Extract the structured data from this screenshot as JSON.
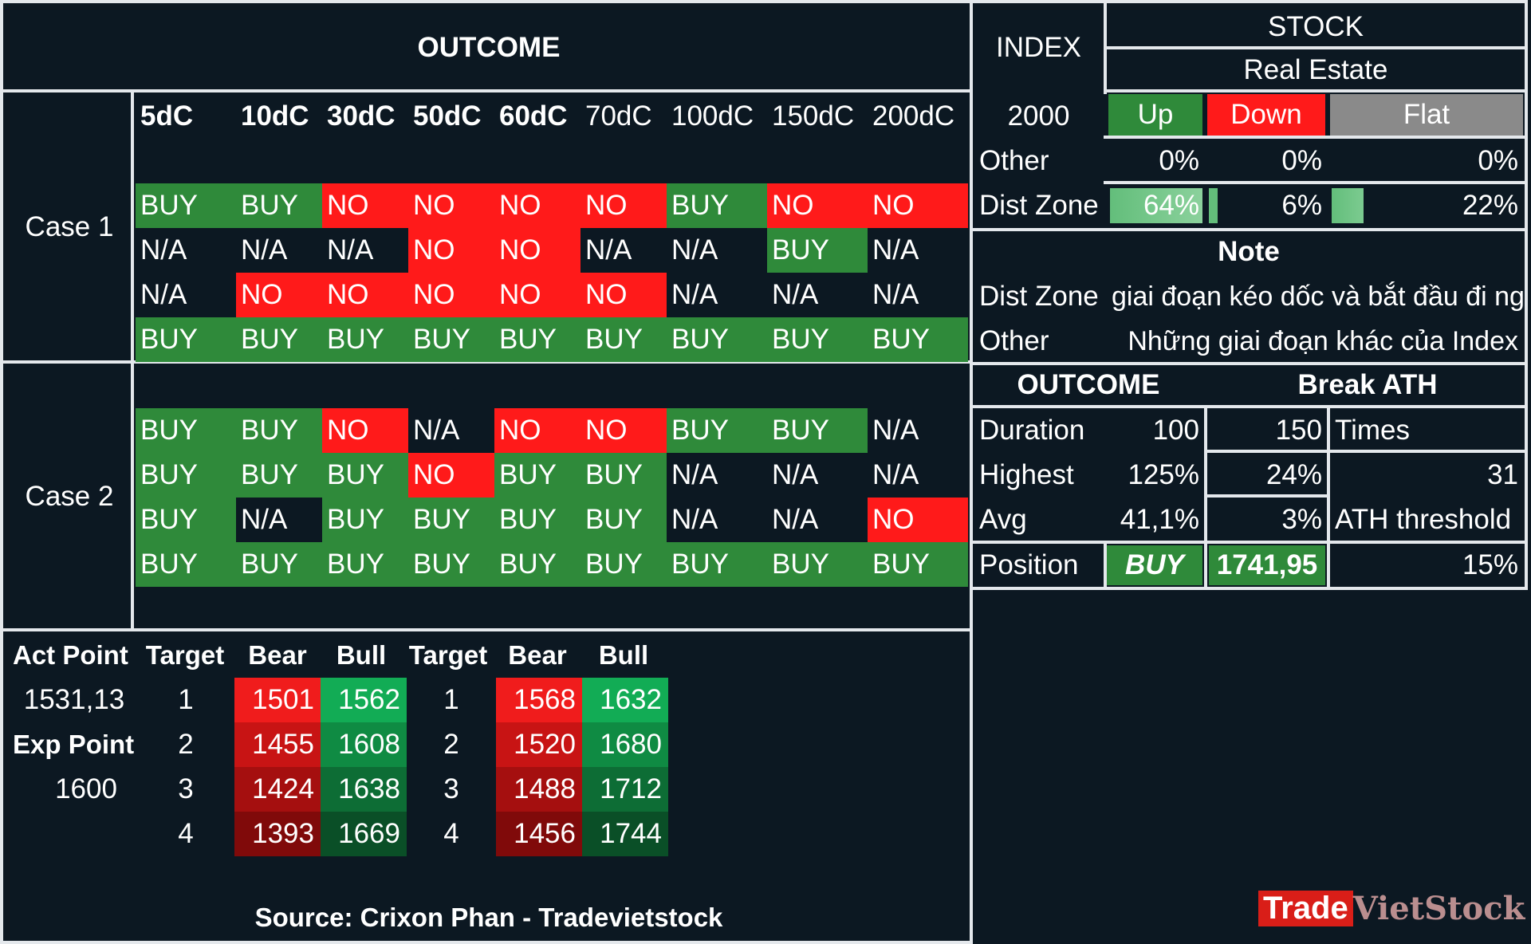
{
  "outcome_header": "OUTCOME",
  "columns": [
    "5dC",
    "10dC",
    "30dC",
    "50dC",
    "60dC",
    "70dC",
    "100dC",
    "150dC",
    "200dC"
  ],
  "columns_bold": [
    true,
    true,
    true,
    true,
    true,
    false,
    false,
    false,
    false
  ],
  "case1": {
    "label": "Case 1",
    "rows": [
      [
        "BUY",
        "BUY",
        "NO",
        "NO",
        "NO",
        "NO",
        "BUY",
        "NO",
        "NO"
      ],
      [
        "N/A",
        "N/A",
        "N/A",
        "NO",
        "NO",
        "N/A",
        "N/A",
        "BUY",
        "N/A"
      ],
      [
        "N/A",
        "NO",
        "NO",
        "NO",
        "NO",
        "NO",
        "N/A",
        "N/A",
        "N/A"
      ],
      [
        "BUY",
        "BUY",
        "BUY",
        "BUY",
        "BUY",
        "BUY",
        "BUY",
        "BUY",
        "BUY"
      ]
    ]
  },
  "case2": {
    "label": "Case 2",
    "rows": [
      [
        "BUY",
        "BUY",
        "NO",
        "N/A",
        "NO",
        "NO",
        "BUY",
        "BUY",
        "N/A"
      ],
      [
        "BUY",
        "BUY",
        "BUY",
        "NO",
        "BUY",
        "BUY",
        "N/A",
        "N/A",
        "N/A"
      ],
      [
        "BUY",
        "N/A",
        "BUY",
        "BUY",
        "BUY",
        "BUY",
        "N/A",
        "N/A",
        "NO"
      ],
      [
        "BUY",
        "BUY",
        "BUY",
        "BUY",
        "BUY",
        "BUY",
        "BUY",
        "BUY",
        "BUY"
      ]
    ]
  },
  "targets": {
    "headers": [
      "Act Point",
      "Target",
      "Bear",
      "Bull",
      "Target",
      "Bear",
      "Bull"
    ],
    "act_point_value": "1531,13",
    "exp_point_label": "Exp Point",
    "exp_point_value": "1600",
    "rows": [
      {
        "t1": "1",
        "bear1": "1501",
        "bull1": "1562",
        "t2": "1",
        "bear2": "1568",
        "bull2": "1632"
      },
      {
        "t1": "2",
        "bear1": "1455",
        "bull1": "1608",
        "t2": "2",
        "bear2": "1520",
        "bull2": "1680"
      },
      {
        "t1": "3",
        "bear1": "1424",
        "bull1": "1638",
        "t2": "3",
        "bear2": "1488",
        "bull2": "1712"
      },
      {
        "t1": "4",
        "bear1": "1393",
        "bull1": "1669",
        "t2": "4",
        "bear2": "1456",
        "bull2": "1744"
      }
    ],
    "bear_colors": [
      "#f01c1c",
      "#c81414",
      "#a50f0f",
      "#800a0a"
    ],
    "bull_colors": [
      "#12ac55",
      "#0f8b43",
      "#0d6d35",
      "#0a4f27"
    ]
  },
  "source": "Source: Crixon Phan - Tradevietstock",
  "right_panel": {
    "index_label": "INDEX",
    "index_value": "2000",
    "other_label": "Other",
    "dist_zone_label": "Dist Zone",
    "stock_label": "STOCK",
    "sector": "Real Estate",
    "up_label": "Up",
    "down_label": "Down",
    "flat_label": "Flat",
    "other_up": "0%",
    "other_down": "0%",
    "other_flat": "0%",
    "dist_up": "64%",
    "dist_down": "6%",
    "dist_flat": "22%",
    "dist_up_fraction": 0.64,
    "dist_down_fraction": 0.06,
    "dist_flat_fraction": 0.22,
    "note_title": "Note",
    "note_dist_label": "Dist Zone",
    "note_dist_text": "giai đoạn kéo dốc và bắt đầu đi ng",
    "note_other_label": "Other",
    "note_other_text": "Những giai đoạn khác của Index"
  },
  "stats": {
    "outcome_label": "OUTCOME",
    "break_ath_label": "Break ATH",
    "duration_label": "Duration",
    "duration_value": "100",
    "duration_value2": "150",
    "times_label": "Times",
    "times_value": "31",
    "highest_label": "Highest",
    "highest_value": "125%",
    "highest_value2": "24%",
    "avg_label": "Avg",
    "avg_value": "41,1%",
    "avg_value2": "3%",
    "ath_threshold_label": "ATH threshold",
    "ath_threshold_value": "15%",
    "position_label": "Position",
    "position_value": "BUY",
    "position_price": "1741,95"
  },
  "watermark": {
    "part1": "Trade",
    "part2": "VietStock"
  },
  "colors": {
    "buy": "#2f8a3a",
    "no": "#ff1a1a",
    "flat": "#8a8a8a",
    "background": "#0c1822"
  }
}
